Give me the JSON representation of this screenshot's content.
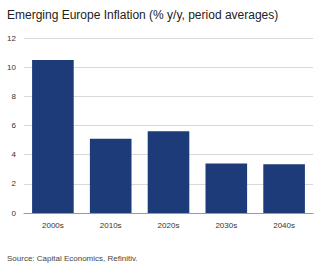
{
  "chart_data": {
    "type": "bar",
    "title": "Emerging Europe Inflation (% y/y, period averages)",
    "source": "Source: Capital Economics, Refinitiv.",
    "categories": [
      "2000s",
      "2010s",
      "2020s",
      "2030s",
      "2040s"
    ],
    "values": [
      10.5,
      5.1,
      5.6,
      3.4,
      3.35
    ],
    "color": "#1d3b78",
    "ylim": [
      0,
      12
    ],
    "yticks": [
      0,
      2,
      4,
      6,
      8,
      10,
      12
    ],
    "grid": true
  }
}
